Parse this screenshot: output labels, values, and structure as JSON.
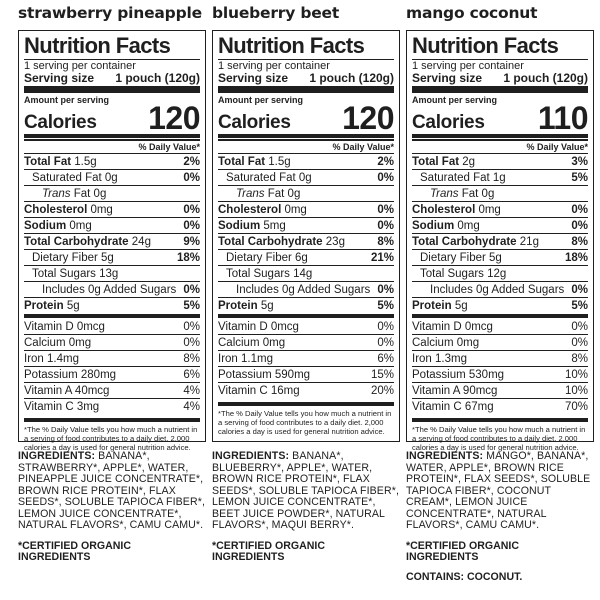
{
  "panels": [
    {
      "flavor": "strawberry pineapple",
      "title": "Nutrition Facts",
      "servings_per_container": "1 serving per container",
      "serving_size_label": "Serving size",
      "serving_size_value": "1 pouch (120g)",
      "amount_per_serving": "Amount per serving",
      "calories_label": "Calories",
      "calories_value": "120",
      "dv_header": "% Daily Value*",
      "rows": [
        {
          "label": "Total Fat",
          "amount": " 1.5g",
          "pct": "2%"
        },
        {
          "label": "Saturated Fat",
          "amount": " 0g",
          "pct": "0%"
        },
        {
          "label": "Trans",
          "amount": " Fat 0g",
          "pct": ""
        },
        {
          "label": "Cholesterol",
          "amount": " 0mg",
          "pct": "0%"
        },
        {
          "label": "Sodium",
          "amount": " 0mg",
          "pct": "0%"
        },
        {
          "label": "Total Carbohydrate",
          "amount": " 24g",
          "pct": "9%"
        },
        {
          "label": "Dietary Fiber",
          "amount": " 5g",
          "pct": "18%"
        },
        {
          "label": "Total Sugars",
          "amount": " 13g",
          "pct": ""
        },
        {
          "label": "Includes",
          "amount": " 0g Added Sugars",
          "pct": "0%"
        },
        {
          "label": "Protein",
          "amount": " 5g",
          "pct": "5%"
        }
      ],
      "vitamins": [
        {
          "label": "Vitamin D 0mcg",
          "pct": "0%"
        },
        {
          "label": "Calcium 0mg",
          "pct": "0%"
        },
        {
          "label": "Iron 1.4mg",
          "pct": "8%"
        },
        {
          "label": "Potassium 280mg",
          "pct": "6%"
        },
        {
          "label": "Vitamin A 40mcg",
          "pct": "4%"
        },
        {
          "label": "Vitamin C 3mg",
          "pct": "4%"
        }
      ],
      "footnote": "*The % Daily Value tells you how much a nutrient in a serving of food contributes to a daily diet. 2,000 calories a day is used for general nutrition advice.",
      "ingredients_label": "INGREDIENTS:",
      "ingredients_text": " BANANA*, STRAWBERRY*, APPLE*, WATER, PINEAPPLE JUICE CONCENTRATE*, BROWN RICE PROTEIN*, FLAX SEEDS*, SOLUBLE TAPIOCA FIBER*, LEMON JUICE CONCENTRATE*, NATURAL FLAVORS*, CAMU CAMU*.",
      "certified": "*CERTIFIED ORGANIC INGREDIENTS",
      "contains": ""
    },
    {
      "flavor": "blueberry beet",
      "title": "Nutrition Facts",
      "servings_per_container": "1 serving per container",
      "serving_size_label": "Serving size",
      "serving_size_value": "1 pouch (120g)",
      "amount_per_serving": "Amount per serving",
      "calories_label": "Calories",
      "calories_value": "120",
      "dv_header": "% Daily Value*",
      "rows": [
        {
          "label": "Total Fat",
          "amount": " 1.5g",
          "pct": "2%"
        },
        {
          "label": "Saturated Fat",
          "amount": " 0g",
          "pct": "0%"
        },
        {
          "label": "Trans",
          "amount": " Fat 0g",
          "pct": ""
        },
        {
          "label": "Cholesterol",
          "amount": " 0mg",
          "pct": "0%"
        },
        {
          "label": "Sodium",
          "amount": " 5mg",
          "pct": "0%"
        },
        {
          "label": "Total Carbohydrate",
          "amount": " 23g",
          "pct": "8%"
        },
        {
          "label": "Dietary Fiber",
          "amount": " 6g",
          "pct": "21%"
        },
        {
          "label": "Total Sugars",
          "amount": " 14g",
          "pct": ""
        },
        {
          "label": "Includes",
          "amount": " 0g Added Sugars",
          "pct": "0%"
        },
        {
          "label": "Protein",
          "amount": " 5g",
          "pct": "5%"
        }
      ],
      "vitamins": [
        {
          "label": "Vitamin D 0mcg",
          "pct": "0%"
        },
        {
          "label": "Calcium 0mg",
          "pct": "0%"
        },
        {
          "label": "Iron 1.1mg",
          "pct": "6%"
        },
        {
          "label": "Potassium 590mg",
          "pct": "15%"
        },
        {
          "label": "Vitamin C 16mg",
          "pct": "20%"
        }
      ],
      "footnote": "*The % Daily Value tells you how much a nutrient in a serving of food contributes to a daily diet. 2,000 calories a day is used for general nutrition advice.",
      "ingredients_label": "INGREDIENTS:",
      "ingredients_text": " BANANA*, BLUEBERRY*, APPLE*, WATER, BROWN RICE PROTEIN*, FLAX SEEDS*, SOLUBLE TAPIOCA FIBER*, LEMON JUICE CONCENTRATE*, BEET JUICE POWDER*, NATURAL FLAVORS*, MAQUI BERRY*.",
      "certified": "*CERTIFIED ORGANIC INGREDIENTS",
      "contains": ""
    },
    {
      "flavor": "mango coconut",
      "title": "Nutrition Facts",
      "servings_per_container": "1 serving per container",
      "serving_size_label": "Serving size",
      "serving_size_value": "1 pouch (120g)",
      "amount_per_serving": "Amount per serving",
      "calories_label": "Calories",
      "calories_value": "110",
      "dv_header": "% Daily Value*",
      "rows": [
        {
          "label": "Total Fat",
          "amount": " 2g",
          "pct": "3%"
        },
        {
          "label": "Saturated Fat",
          "amount": " 1g",
          "pct": "5%"
        },
        {
          "label": "Trans",
          "amount": " Fat 0g",
          "pct": ""
        },
        {
          "label": "Cholesterol",
          "amount": " 0mg",
          "pct": "0%"
        },
        {
          "label": "Sodium",
          "amount": " 0mg",
          "pct": "0%"
        },
        {
          "label": "Total Carbohydrate",
          "amount": " 21g",
          "pct": "8%"
        },
        {
          "label": "Dietary Fiber",
          "amount": " 5g",
          "pct": "18%"
        },
        {
          "label": "Total Sugars",
          "amount": " 12g",
          "pct": ""
        },
        {
          "label": "Includes",
          "amount": " 0g Added Sugars",
          "pct": "0%"
        },
        {
          "label": "Protein",
          "amount": " 5g",
          "pct": "5%"
        }
      ],
      "vitamins": [
        {
          "label": "Vitamin D 0mcg",
          "pct": "0%"
        },
        {
          "label": "Calcium 0mg",
          "pct": "0%"
        },
        {
          "label": "Iron 1.3mg",
          "pct": "8%"
        },
        {
          "label": "Potassium 530mg",
          "pct": "10%"
        },
        {
          "label": "Vitamin A 90mcg",
          "pct": "10%"
        },
        {
          "label": "Vitamin C 67mg",
          "pct": "70%"
        }
      ],
      "footnote": "*The % Daily Value tells you how much a nutrient in a serving of food contributes to a daily diet. 2,000 calories a day is used for general nutrition advice.",
      "ingredients_label": "INGREDIENTS:",
      "ingredients_text": " MANGO*, BANANA*, WATER, APPLE*, BROWN RICE PROTEIN*, FLAX SEEDS*, SOLUBLE TAPIOCA FIBER*, COCONUT CREAM*, LEMON JUICE CONCENTRATE*, NATURAL FLAVORS*, CAMU CAMU*.",
      "certified": "*CERTIFIED ORGANIC INGREDIENTS",
      "contains": "CONTAINS: COCONUT."
    }
  ]
}
